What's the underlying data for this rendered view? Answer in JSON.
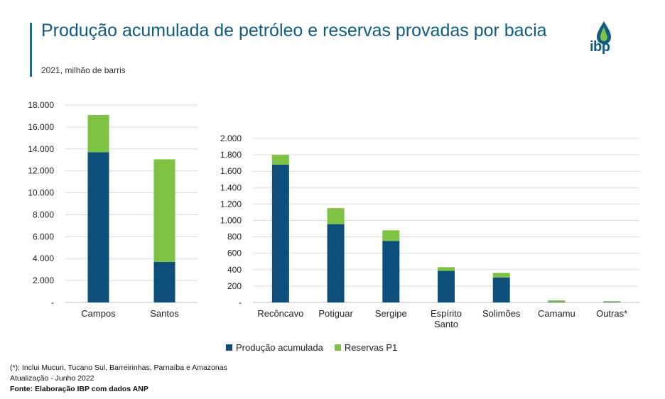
{
  "header": {
    "title": "Produção acumulada de petróleo e reservas provadas por bacia",
    "subtitle": "2021, milhão de barris",
    "logo_text": "ibp"
  },
  "colors": {
    "producao": "#0d4f7a",
    "reservas": "#7dc242",
    "grid": "#d9d9d9",
    "axis": "#bfbfbf"
  },
  "chart_data": [
    {
      "type": "bar",
      "stacked": true,
      "categories": [
        "Campos",
        "Santos"
      ],
      "series": [
        {
          "name": "Produção acumulada",
          "values": [
            13700,
            3700
          ]
        },
        {
          "name": "Reservas P1",
          "values": [
            3400,
            9350
          ]
        }
      ],
      "ylim": [
        0,
        18000
      ],
      "yticks": [
        0,
        2000,
        4000,
        6000,
        8000,
        10000,
        12000,
        14000,
        16000,
        18000
      ],
      "ytick_labels": [
        "-",
        "2.000",
        "4.000",
        "6.000",
        "8.000",
        "10.000",
        "12.000",
        "14.000",
        "16.000",
        "18.000"
      ]
    },
    {
      "type": "bar",
      "stacked": true,
      "categories": [
        [
          "Recôncavo"
        ],
        [
          "Potiguar"
        ],
        [
          "Sergipe"
        ],
        [
          "Espírito",
          "Santo"
        ],
        [
          "Solimões"
        ],
        [
          "Camamu"
        ],
        [
          "Outras*"
        ]
      ],
      "series": [
        {
          "name": "Produção acumulada",
          "values": [
            1680,
            955,
            750,
            385,
            305,
            5,
            5
          ]
        },
        {
          "name": "Reservas P1",
          "values": [
            120,
            195,
            130,
            45,
            55,
            20,
            10
          ]
        }
      ],
      "ylim": [
        0,
        2000
      ],
      "yticks": [
        0,
        200,
        400,
        600,
        800,
        1000,
        1200,
        1400,
        1600,
        1800,
        2000
      ],
      "ytick_labels": [
        "-",
        "200",
        "400",
        "600",
        "800",
        "1.000",
        "1.200",
        "1.400",
        "1.600",
        "1.800",
        "2.000"
      ]
    }
  ],
  "legend": {
    "producao": "Produção acumulada",
    "reservas": "Reservas P1"
  },
  "footnotes": {
    "note": "(*): Inclui Mucuri, Tucano Sul, Barreirinhas, Parnaíba e Amazonas",
    "update": "Atualização - Junho 2022",
    "source": "Fonte: Elaboração IBP com dados ANP"
  }
}
